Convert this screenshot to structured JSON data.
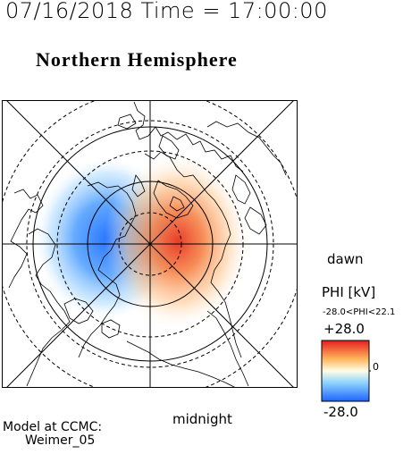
{
  "header": {
    "datetime": "07/16/2018 Time = 17:00:00",
    "hemisphere": "Northern Hemisphere"
  },
  "orientation": {
    "right_label": "dawn",
    "bottom_label": "midnight"
  },
  "colorbar": {
    "quantity": "PHI [kV]",
    "range_text": "-28.0<PHI<22.1",
    "max_label": "+28.0",
    "min_label": "-28.0",
    "center_tick": "0",
    "colors": [
      "#1e64ff",
      "#8cd2ff",
      "#fffce6",
      "#ffb45a",
      "#e61e1e"
    ]
  },
  "credits": {
    "line1": "Model at CCMC:",
    "line2": "Weimer_05"
  }
}
